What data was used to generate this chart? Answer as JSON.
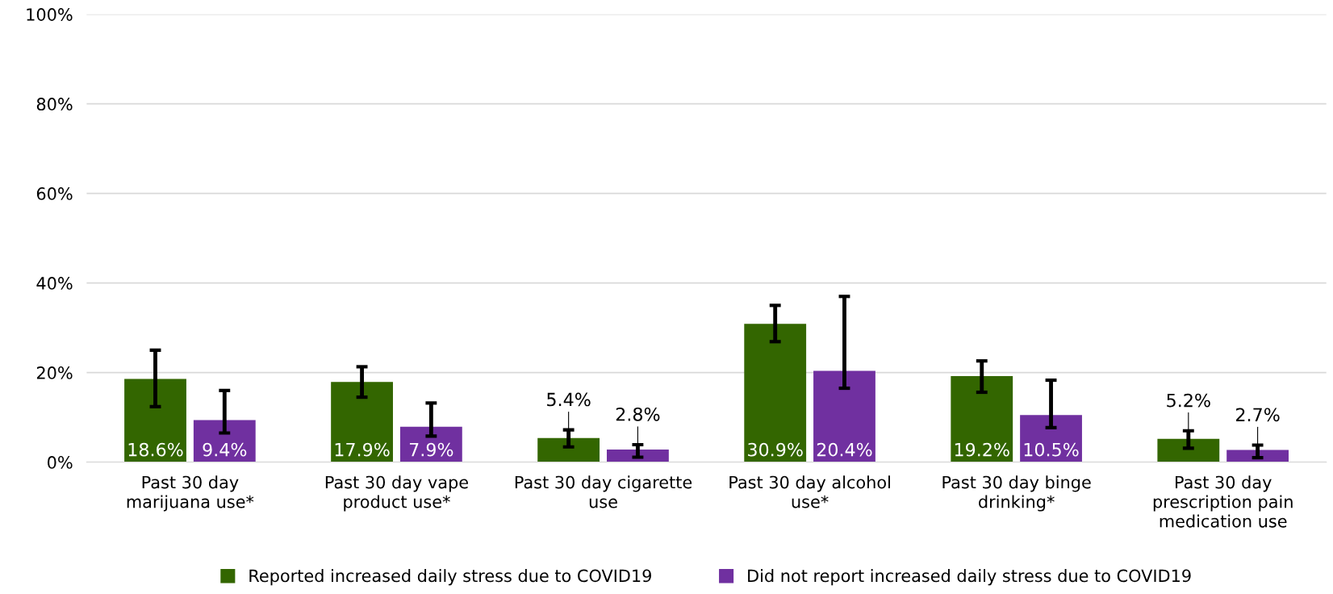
{
  "chart_data": {
    "type": "bar",
    "categories": [
      "Past 30 day\nmarijuana use*",
      "Past 30 day vape\nproduct use*",
      "Past 30 day cigarette\nuse",
      "Past 30 day alcohol\nuse*",
      "Past 30 day binge\ndrinking*",
      "Past 30 day\nprescription pain\nmedication use"
    ],
    "series": [
      {
        "name": "Reported increased daily stress due to COVID19",
        "color": "#336600",
        "values": [
          18.6,
          17.9,
          5.4,
          30.9,
          19.2,
          5.2
        ],
        "value_labels": [
          "18.6%",
          "17.9%",
          "5.4%",
          "30.9%",
          "19.2%",
          "5.2%"
        ],
        "errors": [
          [
            12.4,
            25.0
          ],
          [
            14.5,
            21.3
          ],
          [
            3.4,
            7.2
          ],
          [
            26.9,
            35.0
          ],
          [
            15.6,
            22.6
          ],
          [
            3.1,
            7.0
          ]
        ]
      },
      {
        "name": "Did not report increased daily stress due to COVID19",
        "color": "#7030a0",
        "values": [
          9.4,
          7.9,
          2.8,
          20.4,
          10.5,
          2.7
        ],
        "value_labels": [
          "9.4%",
          "7.9%",
          "2.8%",
          "20.4%",
          "10.5%",
          "2.7%"
        ],
        "errors": [
          [
            6.5,
            16.0
          ],
          [
            5.8,
            13.2
          ],
          [
            1.1,
            3.9
          ],
          [
            16.5,
            37.0
          ],
          [
            7.7,
            18.3
          ],
          [
            1.0,
            3.8
          ]
        ]
      }
    ],
    "ylim": [
      0,
      100
    ],
    "yticks": [
      {
        "value": 0,
        "label": "0%"
      },
      {
        "value": 20,
        "label": "20%"
      },
      {
        "value": 40,
        "label": "40%"
      },
      {
        "value": 60,
        "label": "60%"
      },
      {
        "value": 80,
        "label": "80%"
      },
      {
        "value": 100,
        "label": "100%"
      }
    ],
    "grid": "y",
    "legend": "bottom"
  }
}
